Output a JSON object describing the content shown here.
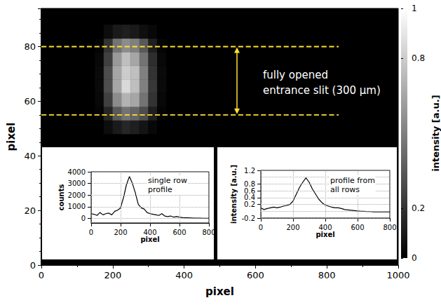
{
  "chart_data": [
    {
      "type": "heatmap",
      "xlabel": "pixel",
      "ylabel": "pixel",
      "xlim": [
        0,
        1000
      ],
      "xticks": [
        0,
        200,
        400,
        600,
        800,
        1000
      ],
      "ylim": [
        0,
        94
      ],
      "yticks": [
        0,
        20,
        40,
        60,
        80
      ],
      "x_edges": [
        150,
        175,
        200,
        225,
        250,
        275,
        300,
        325,
        350
      ],
      "y_edges": [
        48,
        53,
        58,
        63,
        68,
        73,
        78,
        83,
        88
      ],
      "cells": [
        [
          0,
          0.05,
          0.1,
          0.15,
          0.12,
          0.08,
          0.03,
          0
        ],
        [
          0.02,
          0.15,
          0.35,
          0.45,
          0.4,
          0.3,
          0.12,
          0.02
        ],
        [
          0.03,
          0.25,
          0.55,
          0.7,
          0.65,
          0.45,
          0.2,
          0.03
        ],
        [
          0.04,
          0.3,
          0.65,
          0.85,
          0.75,
          0.5,
          0.22,
          0.04
        ],
        [
          0.04,
          0.3,
          0.65,
          0.8,
          0.75,
          0.5,
          0.2,
          0.04
        ],
        [
          0.03,
          0.25,
          0.6,
          0.75,
          0.65,
          0.45,
          0.18,
          0.03
        ],
        [
          0.02,
          0.2,
          0.45,
          0.55,
          0.5,
          0.35,
          0.12,
          0.02
        ],
        [
          0,
          0.05,
          0.1,
          0.12,
          0.1,
          0.06,
          0.03,
          0
        ]
      ],
      "colorbar": {
        "label": "intensity [a.u.]",
        "range": [
          0,
          1
        ],
        "ticks": [
          0,
          0.2,
          0.8,
          1
        ]
      },
      "slit_lines": {
        "y": [
          55,
          80
        ],
        "x": [
          0,
          833
        ],
        "color": "#ffe033",
        "line_style": "dashed"
      },
      "annotation": "fully opened\nentrance slit (300 µm)"
    },
    {
      "type": "line",
      "title": "single row\nprofile",
      "xlabel": "pixel",
      "ylabel": "counts",
      "xlim": [
        0,
        800
      ],
      "xticks": [
        0,
        200,
        400,
        600,
        800
      ],
      "ylim": [
        -400,
        4000
      ],
      "yticks": [
        0,
        1000,
        2000,
        3000,
        4000
      ],
      "grid": true,
      "color": "#000000",
      "x": [
        0,
        20,
        40,
        60,
        80,
        100,
        120,
        140,
        160,
        180,
        200,
        220,
        240,
        260,
        280,
        300,
        320,
        340,
        360,
        380,
        400,
        420,
        440,
        460,
        480,
        500,
        520,
        540,
        560,
        580,
        600,
        620,
        640,
        660,
        680,
        700,
        720,
        740,
        760,
        780,
        800
      ],
      "values": [
        400,
        350,
        250,
        500,
        300,
        400,
        450,
        300,
        600,
        700,
        900,
        1800,
        2900,
        3600,
        3000,
        2200,
        1200,
        900,
        800,
        500,
        400,
        350,
        300,
        250,
        400,
        200,
        150,
        200,
        100,
        150,
        100,
        60,
        50,
        40,
        30,
        20,
        10,
        10,
        0,
        0,
        0
      ]
    },
    {
      "type": "line",
      "title": "profile from\nall rows",
      "xlabel": "pixel",
      "ylabel": "intensity [a.u.]",
      "xlim": [
        0,
        800
      ],
      "xticks": [
        0,
        200,
        400,
        600,
        800
      ],
      "ylim": [
        -0.2,
        1.2
      ],
      "yticks": [
        -0.2,
        0,
        0.2,
        0.4,
        0.6,
        0.8,
        1,
        1.2
      ],
      "grid": true,
      "color": "#000000",
      "x": [
        0,
        20,
        40,
        60,
        80,
        100,
        120,
        140,
        160,
        180,
        200,
        220,
        240,
        260,
        280,
        300,
        320,
        340,
        360,
        380,
        400,
        420,
        440,
        460,
        480,
        500,
        520,
        540,
        560,
        580,
        600,
        620,
        640,
        660,
        680,
        700,
        720,
        740,
        760,
        780,
        800
      ],
      "values": [
        0.1,
        0.05,
        0.08,
        0.1,
        0.12,
        0.1,
        0.12,
        0.15,
        0.17,
        0.2,
        0.3,
        0.5,
        0.7,
        0.85,
        0.98,
        0.85,
        0.65,
        0.5,
        0.35,
        0.25,
        0.18,
        0.15,
        0.12,
        0.1,
        0.1,
        0.08,
        0.05,
        0.04,
        0.03,
        0.02,
        0.01,
        0,
        0,
        -0.01,
        -0.01,
        -0.02,
        -0.02,
        -0.02,
        -0.02,
        -0.02,
        -0.02
      ]
    }
  ]
}
